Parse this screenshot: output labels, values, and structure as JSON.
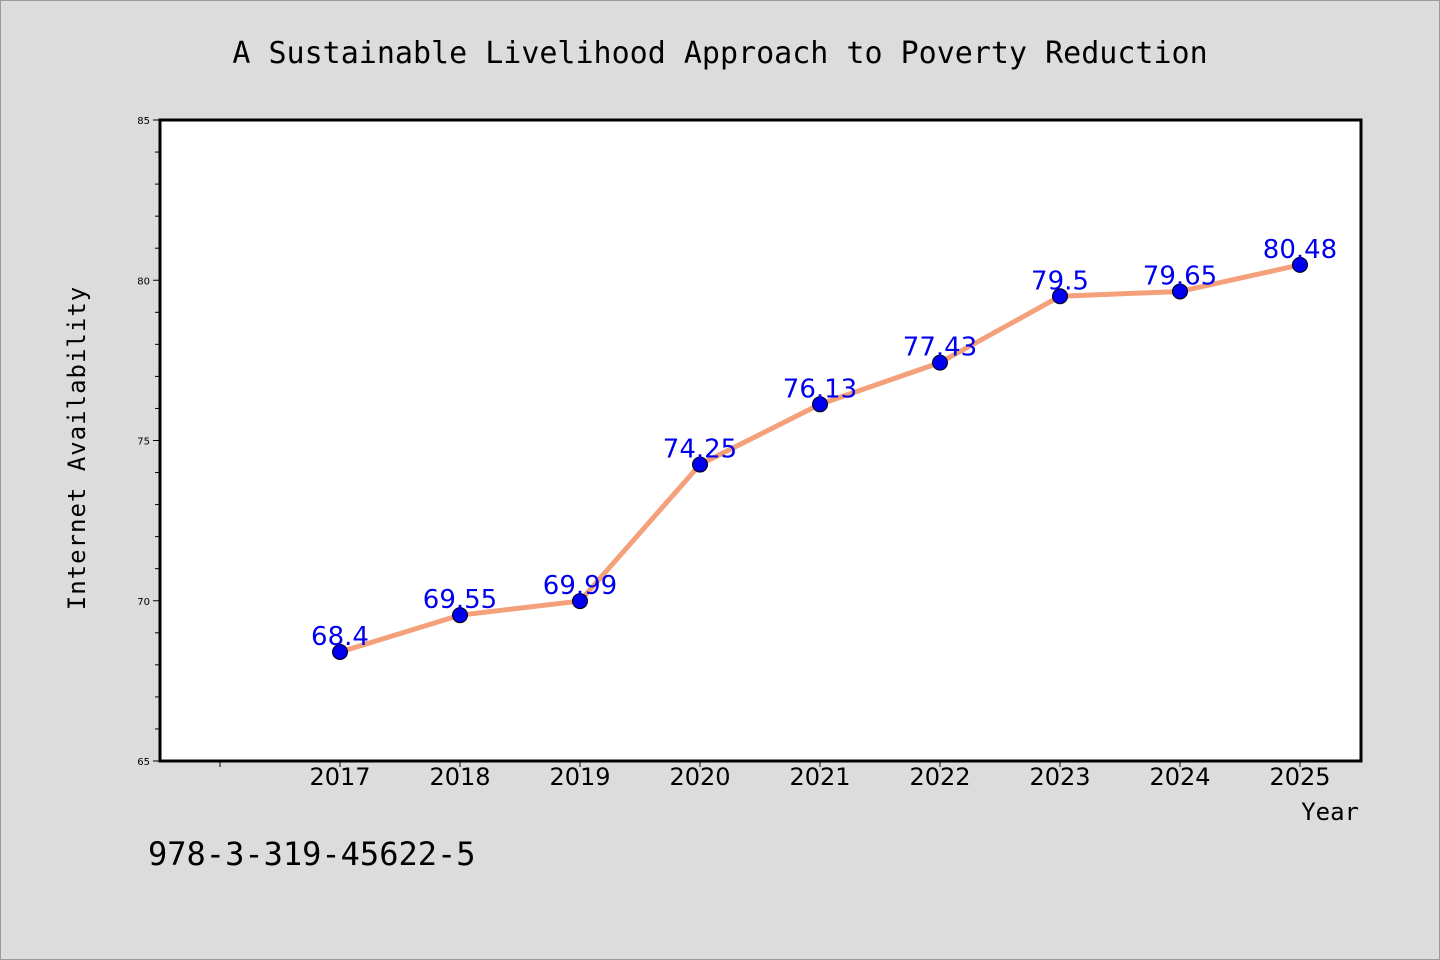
{
  "chart_data": {
    "type": "line",
    "title": "A Sustainable Livelihood Approach to Poverty Reduction",
    "xlabel": "Year",
    "ylabel": "Internet Availability",
    "categories": [
      "2017",
      "2018",
      "2019",
      "2020",
      "2021",
      "2022",
      "2023",
      "2024",
      "2025"
    ],
    "series": [
      {
        "values": [
          68.4,
          69.55,
          69.99,
          74.25,
          76.13,
          77.43,
          79.5,
          79.65,
          80.48
        ],
        "labels": [
          "68.4",
          "69.55",
          "69.99",
          "74.25",
          "76.13",
          "77.43",
          "79.5",
          "79.65",
          "80.48"
        ],
        "line_color": "#f4a07a",
        "marker_color": "#0000ee",
        "label_color": "#0000ee"
      }
    ],
    "ylim": [
      65,
      85
    ],
    "yticks": [
      "65",
      "70",
      "75",
      "80",
      "85"
    ],
    "grid": false,
    "legend": "none",
    "annotation": "978-3-319-45622-5"
  }
}
